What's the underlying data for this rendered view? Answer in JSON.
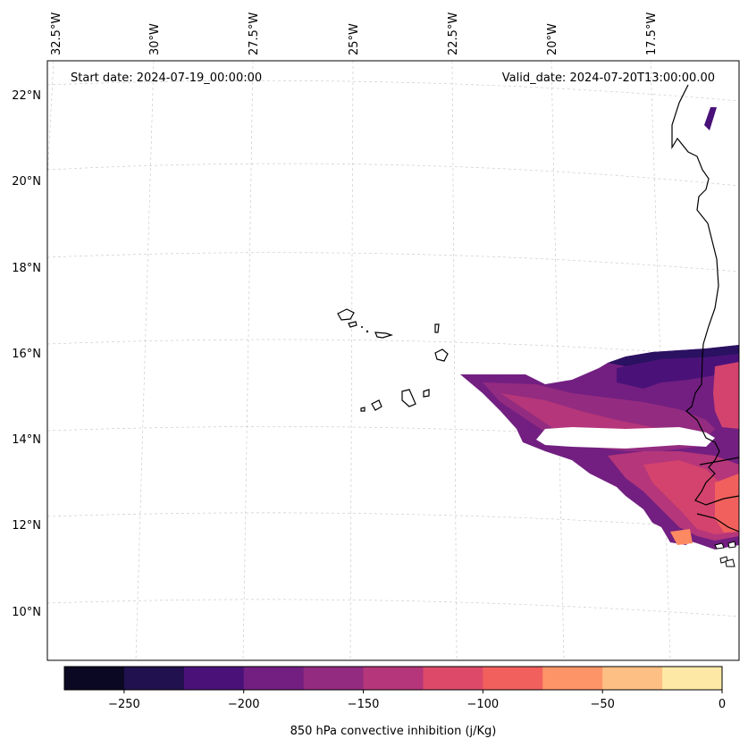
{
  "map": {
    "start_date": "Start date: 2024-07-19_00:00:00",
    "valid_date": "Valid_date: 2024-07-20T13:00:00.00",
    "lon_labels": [
      "32.5°W",
      "30°W",
      "27.5°W",
      "25°W",
      "22.5°W",
      "20°W",
      "17.5°W"
    ],
    "lat_labels": [
      "22°N",
      "20°N",
      "18°N",
      "16°N",
      "14°N",
      "12°N",
      "10°N"
    ],
    "field_colors": [
      "#2a1161",
      "#4a1279",
      "#721f81",
      "#932b80",
      "#b5367a",
      "#d3436e",
      "#f1605d",
      "#fc8961"
    ]
  },
  "colorbar": {
    "label": "850 hPa convective inhibition (j/Kg)",
    "colors": [
      "#0a0822",
      "#21114e",
      "#4a1279",
      "#721f81",
      "#932b80",
      "#b5367a",
      "#dd4a69",
      "#f1605d",
      "#fd9467",
      "#febf84",
      "#fde9a5"
    ],
    "ticks": [
      "−250",
      "−200",
      "−150",
      "−100",
      "−50",
      "0"
    ]
  }
}
